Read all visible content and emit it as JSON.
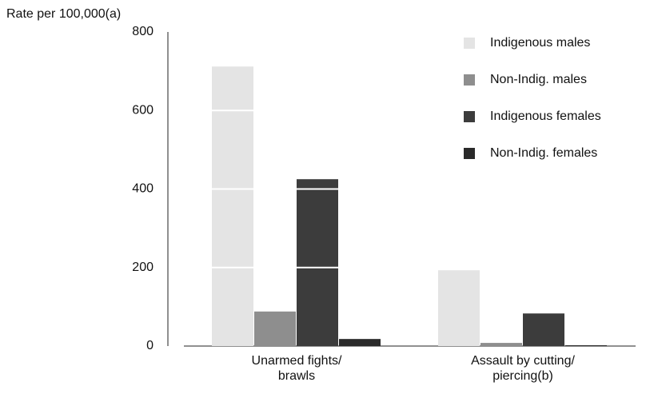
{
  "chart_data": {
    "type": "bar",
    "y_label": "Rate per 100,000(a)",
    "categories": [
      "Unarmed fights/\nbrawls",
      "Assault by cutting/\npiercing(b)"
    ],
    "series": [
      {
        "name": "Indigenous males",
        "color": "#e4e4e4",
        "values": [
          712,
          193
        ]
      },
      {
        "name": "Non-Indig. males",
        "color": "#8e8e8e",
        "values": [
          88,
          8
        ]
      },
      {
        "name": "Indigenous females",
        "color": "#3c3c3c",
        "values": [
          425,
          83
        ]
      },
      {
        "name": "Non-Indig. females",
        "color": "#2a2a2a",
        "values": [
          18,
          2
        ]
      }
    ],
    "ylim": [
      0,
      800
    ],
    "yticks": [
      0,
      200,
      400,
      600,
      800
    ],
    "grid": true,
    "grid_color": "#ffffff",
    "legend": "top-right"
  }
}
